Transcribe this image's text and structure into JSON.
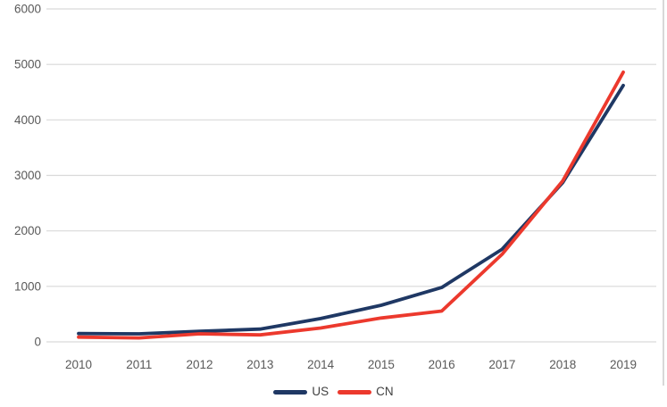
{
  "chart_data": {
    "type": "line",
    "title": "",
    "xlabel": "",
    "ylabel": "",
    "categories": [
      "2010",
      "2011",
      "2012",
      "2013",
      "2014",
      "2015",
      "2016",
      "2017",
      "2018",
      "2019"
    ],
    "series": [
      {
        "name": "US",
        "color": "#1f3864",
        "values": [
          150,
          145,
          190,
          230,
          420,
          660,
          980,
          1670,
          2870,
          4620
        ]
      },
      {
        "name": "CN",
        "color": "#ec392d",
        "values": [
          85,
          70,
          145,
          125,
          250,
          430,
          555,
          1580,
          2900,
          4860
        ]
      }
    ],
    "y_axis": {
      "min": 0,
      "max": 6000,
      "step": 1000,
      "tick_labels": [
        "0",
        "1000",
        "2000",
        "3000",
        "4000",
        "5000",
        "6000"
      ]
    },
    "grid": true,
    "legend_position": "bottom"
  },
  "colors": {
    "background": "#ffffff",
    "gridline": "#d9d9d9",
    "tick_text": "#595959",
    "legend_text": "#404040",
    "frame_border": "#d8d8d8",
    "us_line": "#1f3864",
    "cn_line": "#ec392d"
  }
}
